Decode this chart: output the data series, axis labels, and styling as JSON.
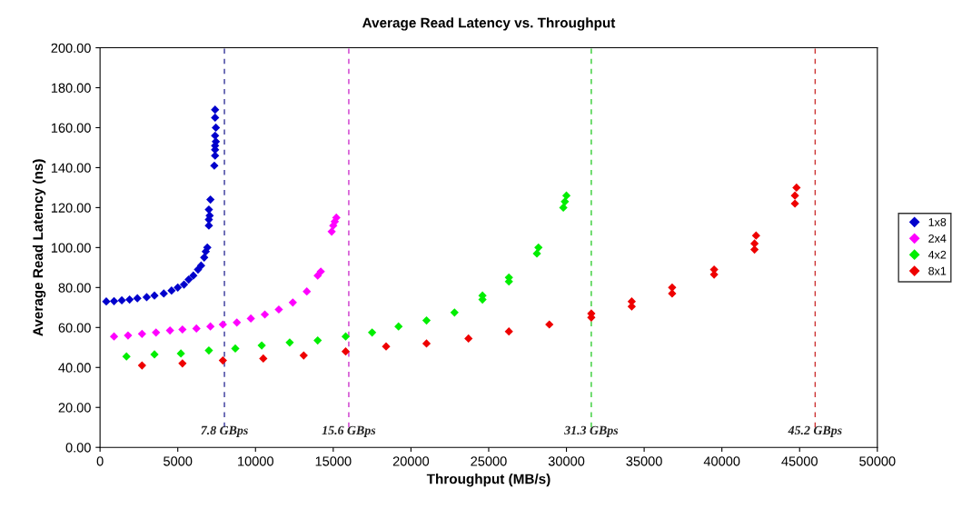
{
  "chart_data": {
    "type": "scatter",
    "title": "Average Read Latency vs. Throughput",
    "xlabel": "Throughput (MB/s)",
    "ylabel": "Average Read Latency (ns)",
    "marker": "diamond",
    "grid": false,
    "legend": "right",
    "xlim": [
      0,
      50000
    ],
    "xticks": [
      0,
      5000,
      10000,
      15000,
      20000,
      25000,
      30000,
      35000,
      40000,
      45000,
      50000
    ],
    "ylim": [
      0,
      200
    ],
    "yticks": [
      {
        "value": 0,
        "label": "0.00"
      },
      {
        "value": 20,
        "label": "20.00"
      },
      {
        "value": 40,
        "label": "40.00"
      },
      {
        "value": 60,
        "label": "60.00"
      },
      {
        "value": 80,
        "label": "80.00"
      },
      {
        "value": 100,
        "label": "100.00"
      },
      {
        "value": 120,
        "label": "120.00"
      },
      {
        "value": 140,
        "label": "140.00"
      },
      {
        "value": 160,
        "label": "160.00"
      },
      {
        "value": 180,
        "label": "180.00"
      },
      {
        "value": 200,
        "label": "200.00"
      }
    ],
    "series": [
      {
        "name": "1x8",
        "color": "#0000cc",
        "x": [
          400,
          900,
          1400,
          1900,
          2400,
          3000,
          3500,
          4100,
          4600,
          5000,
          5400,
          5700,
          6000,
          6300,
          6500,
          6700,
          6800,
          6900,
          7000,
          7000,
          7050,
          7000,
          7100,
          7350,
          7400,
          7400,
          7400,
          7450,
          7400,
          7450,
          7400,
          7400
        ],
        "values": [
          73,
          73.2,
          73.6,
          74,
          74.6,
          75.2,
          76,
          77,
          78.5,
          80,
          81.5,
          84,
          86,
          89,
          91,
          95,
          98,
          100,
          111,
          114,
          116,
          119,
          124,
          141,
          146,
          149,
          151,
          153,
          156,
          160,
          165,
          169
        ]
      },
      {
        "name": "2x4",
        "color": "#ff00ff",
        "x": [
          900,
          1800,
          2700,
          3600,
          4500,
          5300,
          6200,
          7100,
          7900,
          8800,
          9700,
          10600,
          11500,
          12400,
          13300,
          14000,
          14200,
          14900,
          15000,
          15100,
          15200
        ],
        "values": [
          55.5,
          56,
          56.8,
          57.5,
          58.5,
          59,
          59.5,
          60.5,
          61.5,
          62.5,
          64.5,
          66.5,
          69,
          72.5,
          78,
          86,
          88,
          108,
          111,
          113,
          115
        ]
      },
      {
        "name": "4x2",
        "color": "#00ee00",
        "x": [
          1700,
          3500,
          5200,
          7000,
          8700,
          10400,
          12200,
          14000,
          15800,
          17500,
          19200,
          21000,
          22800,
          24600,
          24600,
          26300,
          26300,
          28100,
          28200,
          29800,
          29900,
          30000
        ],
        "values": [
          45.5,
          46.5,
          47,
          48.5,
          49.5,
          51,
          52.5,
          53.5,
          55.5,
          57.5,
          60.5,
          63.5,
          67.5,
          74,
          76,
          83,
          85,
          97,
          100,
          120,
          123,
          126
        ]
      },
      {
        "name": "8x1",
        "color": "#ee0000",
        "x": [
          2700,
          5300,
          7900,
          10500,
          13100,
          15800,
          18400,
          21000,
          23700,
          26300,
          28900,
          31600,
          31600,
          34200,
          34200,
          36800,
          36800,
          39500,
          39500,
          42100,
          42100,
          42200,
          44700,
          44700,
          44800
        ],
        "values": [
          41,
          42,
          43.5,
          44.5,
          46,
          48,
          50.5,
          52,
          54.5,
          58,
          61.5,
          65,
          67,
          70.5,
          73,
          77,
          80,
          86.5,
          89,
          99,
          102,
          106,
          122,
          126,
          130
        ]
      }
    ],
    "ref_lines": [
      {
        "axis": "x",
        "value": 8000,
        "label": "7.8 GBps",
        "color": "#333399",
        "line_style": "dashed"
      },
      {
        "axis": "x",
        "value": 16000,
        "label": "15.6 GBps",
        "color": "#cc33cc",
        "line_style": "dashed"
      },
      {
        "axis": "x",
        "value": 31600,
        "label": "31.3 GBps",
        "color": "#33cc33",
        "line_style": "dashed"
      },
      {
        "axis": "x",
        "value": 46000,
        "label": "45.2 GBps",
        "color": "#cc3333",
        "line_style": "dashed"
      }
    ]
  }
}
